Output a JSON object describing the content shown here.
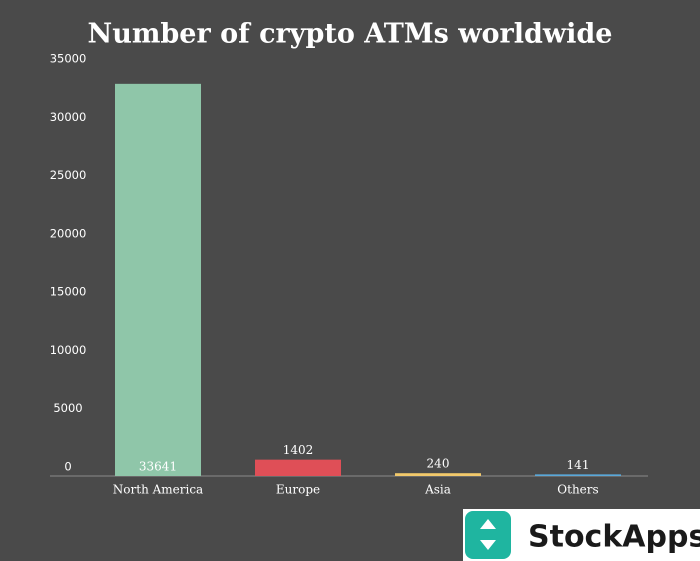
{
  "chart_data": {
    "type": "bar",
    "title": "Number of crypto ATMs worldwide",
    "categories": [
      "North America",
      "Europe",
      "Asia",
      "Others"
    ],
    "values": [
      33641,
      1402,
      240,
      141
    ],
    "colors": [
      "#8fc6a9",
      "#df4f57",
      "#f2c96b",
      "#5aa8d8"
    ],
    "ylim": [
      0,
      35000
    ],
    "yticks": [
      0,
      5000,
      10000,
      15000,
      20000,
      25000,
      30000,
      35000
    ],
    "grid": false
  },
  "logo": {
    "text": "StockApps"
  }
}
